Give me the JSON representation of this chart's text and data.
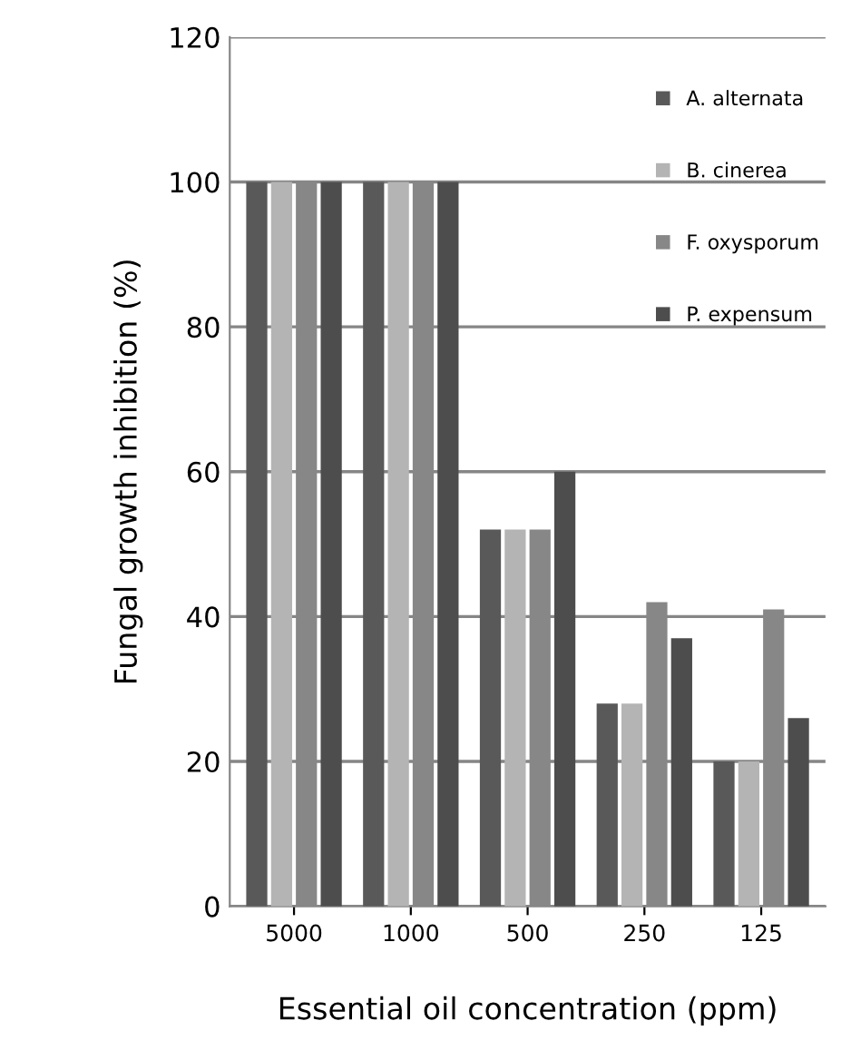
{
  "chart_data": {
    "type": "bar",
    "xlabel": "Essential oil concentration (ppm)",
    "ylabel": "Fungal growth inhibition (%)",
    "categories": [
      "5000",
      "1000",
      "500",
      "250",
      "125"
    ],
    "series": [
      {
        "name": "A. alternata",
        "color": "#595959",
        "values": [
          100,
          100,
          52,
          28,
          20
        ]
      },
      {
        "name": "B. cinerea",
        "color": "#b4b4b4",
        "values": [
          100,
          100,
          52,
          28,
          20
        ]
      },
      {
        "name": "F. oxysporum",
        "color": "#878787",
        "values": [
          100,
          100,
          52,
          42,
          41
        ]
      },
      {
        "name": "P. expensum",
        "color": "#4d4d4d",
        "values": [
          100,
          100,
          60,
          37,
          26
        ]
      }
    ],
    "ylim": [
      0,
      120
    ],
    "yticks": [
      0,
      20,
      40,
      60,
      80,
      100,
      120
    ],
    "grid": "y",
    "legend": "top right"
  }
}
